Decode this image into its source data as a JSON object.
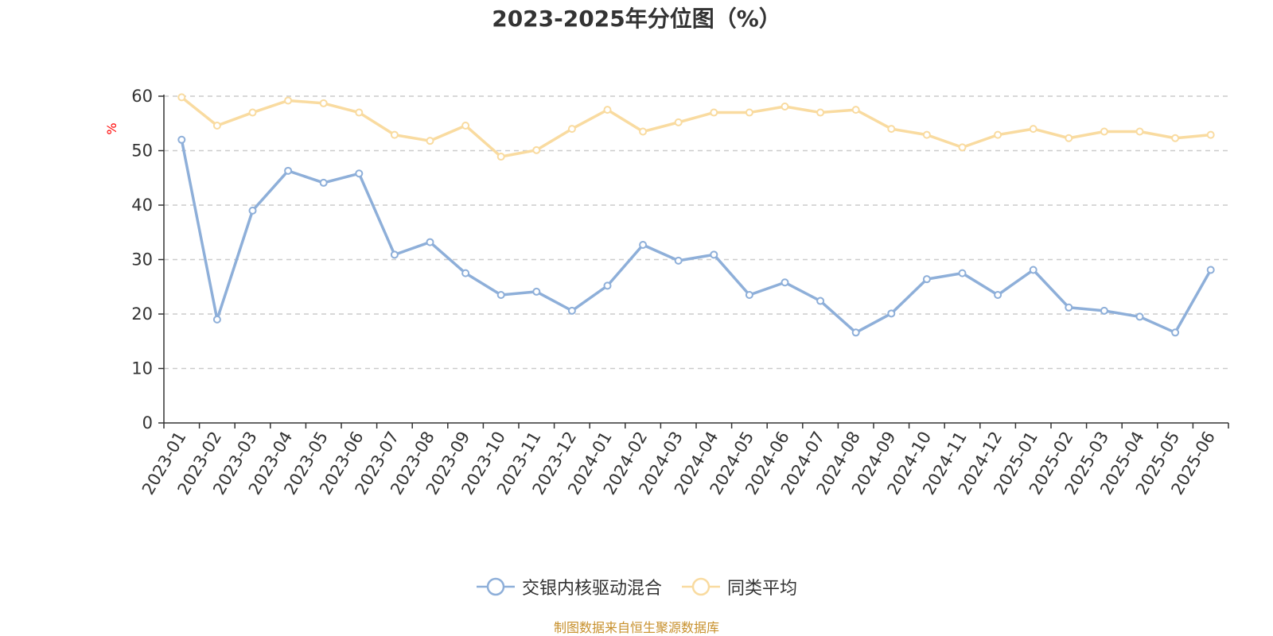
{
  "chart_data": {
    "type": "line",
    "title": "2023-2025年分位图（%）",
    "ylabel": "%",
    "xlabel": "",
    "ylim": [
      0,
      60
    ],
    "yticks": [
      0,
      10,
      20,
      30,
      40,
      50,
      60
    ],
    "grid": true,
    "legend_position": "bottom",
    "categories": [
      "2023-01",
      "2023-02",
      "2023-03",
      "2023-04",
      "2023-05",
      "2023-06",
      "2023-07",
      "2023-08",
      "2023-09",
      "2023-10",
      "2023-11",
      "2023-12",
      "2024-01",
      "2024-02",
      "2024-03",
      "2024-04",
      "2024-05",
      "2024-06",
      "2024-07",
      "2024-08",
      "2024-09",
      "2024-10",
      "2024-11",
      "2024-12",
      "2025-01",
      "2025-02",
      "2025-03",
      "2025-04",
      "2025-05",
      "2025-06"
    ],
    "series": [
      {
        "name": "交银内核驱动混合",
        "color": "#8eafd9",
        "values": [
          52.0,
          19.0,
          39.0,
          46.3,
          44.1,
          45.8,
          30.9,
          33.2,
          27.5,
          23.5,
          24.1,
          20.6,
          25.2,
          32.7,
          29.8,
          30.9,
          23.5,
          25.8,
          22.4,
          16.6,
          20.1,
          26.4,
          27.5,
          23.5,
          28.1,
          21.2,
          20.6,
          19.5,
          16.6,
          28.1
        ]
      },
      {
        "name": "同类平均",
        "color": "#f9dba0",
        "values": [
          59.8,
          54.6,
          57.0,
          59.2,
          58.7,
          57.0,
          52.9,
          51.8,
          54.6,
          48.9,
          50.1,
          54.0,
          57.5,
          53.5,
          55.2,
          57.0,
          57.0,
          58.1,
          57.0,
          57.5,
          54.0,
          52.9,
          50.6,
          52.9,
          54.0,
          52.3,
          53.5,
          53.5,
          52.3,
          52.9
        ]
      }
    ]
  },
  "source_note": "制图数据来自恒生聚源数据库"
}
